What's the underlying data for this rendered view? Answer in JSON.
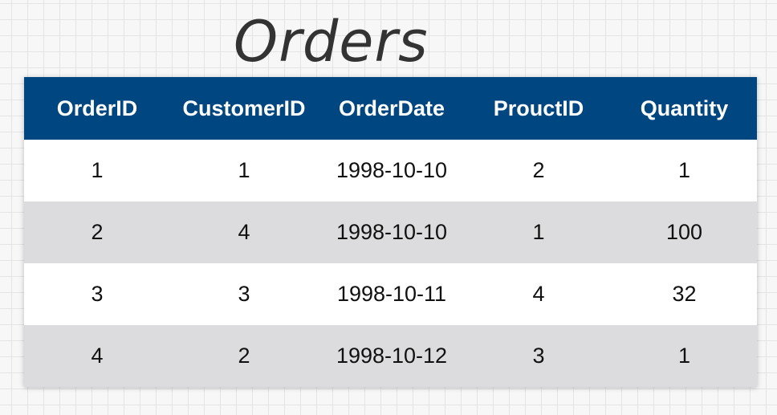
{
  "title": "Orders",
  "colors": {
    "header_bg": "#004681",
    "header_text": "#ffffff",
    "row_odd": "#ffffff",
    "row_even": "#dcdcde",
    "title_text": "#333333"
  },
  "table": {
    "columns": [
      "OrderID",
      "CustomerID",
      "OrderDate",
      "ProuctID",
      "Quantity"
    ],
    "rows": [
      [
        "1",
        "1",
        "1998-10-10",
        "2",
        "1"
      ],
      [
        "2",
        "4",
        "1998-10-10",
        "1",
        "100"
      ],
      [
        "3",
        "3",
        "1998-10-11",
        "4",
        "32"
      ],
      [
        "4",
        "2",
        "1998-10-12",
        "3",
        "1"
      ]
    ]
  }
}
